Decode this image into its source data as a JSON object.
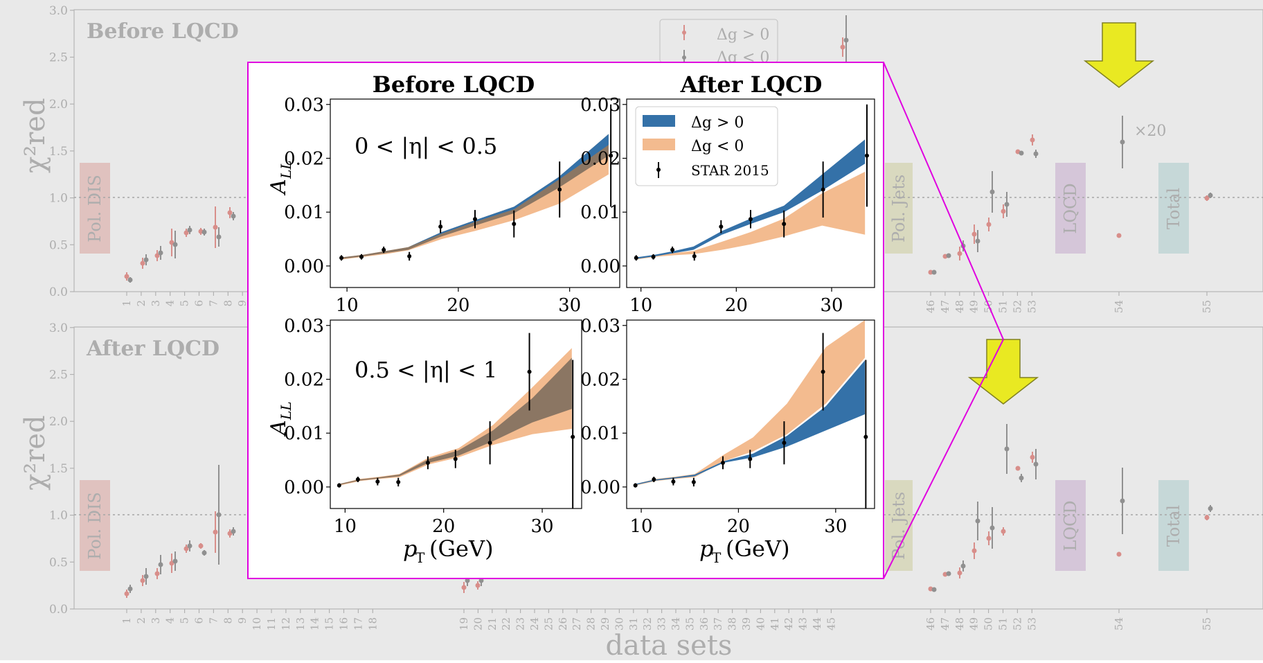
{
  "background": {
    "colors": {
      "dim": "#e9e9e9",
      "text": "#b3b3b3",
      "band_dis": "#f0b8b4",
      "band_jets": "#e3e2b2",
      "band_lqcd": "#dcbfe2",
      "band_total": "#bfe1df",
      "arrow": "#ffff00",
      "red": "#e98b86",
      "grey": "#8e8e8e"
    },
    "top_panel_title": "Before LQCD",
    "bottom_panel_title": "After LQCD",
    "ylabel": "χ²red",
    "xlabel": "data sets",
    "yticks": [
      "0.0",
      "0.5",
      "1.0",
      "1.5",
      "2.0",
      "2.5",
      "3.0"
    ],
    "legend": {
      "pos": "Δg > 0",
      "neg": "Δg < 0"
    },
    "bands": {
      "dis": "Pol. DIS",
      "jets": "Pol. Jets",
      "lqcd": "LQCD",
      "total": "Total"
    },
    "times20": "×20",
    "xticks_top": [
      "1",
      "2",
      "3",
      "4",
      "5",
      "6",
      "7",
      "8",
      "9",
      "46",
      "47",
      "48",
      "49",
      "50",
      "51",
      "52",
      "53",
      "54",
      "55"
    ],
    "xticks_bottom": [
      "1",
      "2",
      "3",
      "4",
      "5",
      "6",
      "7",
      "8",
      "9",
      "10",
      "11",
      "12",
      "13",
      "14",
      "15",
      "16",
      "17",
      "18",
      "19",
      "20",
      "21",
      "22",
      "23",
      "24",
      "25",
      "26",
      "27",
      "28",
      "29",
      "30",
      "31",
      "32",
      "33",
      "34",
      "35",
      "36",
      "37",
      "38",
      "39",
      "40",
      "41",
      "42",
      "43",
      "44",
      "45",
      "46",
      "47",
      "48",
      "49",
      "50",
      "51",
      "52",
      "53",
      "54",
      "55"
    ]
  },
  "inset": {
    "col_titles": [
      "Before LQCD",
      "After LQCD"
    ],
    "eta_labels": [
      "0 < |η| < 0.5",
      "0.5 < |η| < 1"
    ],
    "ylabel": "A",
    "ylabel_sub": "LL",
    "xlabel": "p",
    "xlabel_sub": "T",
    "xlabel_unit": "(GeV)",
    "legend": {
      "pos": "Δg > 0",
      "neg": "Δg < 0",
      "star": "STAR 2015"
    },
    "colors": {
      "pos": "#3471a8",
      "neg": "#f3bb8f",
      "overlap": "#8b7663",
      "border": "#e000e0"
    }
  },
  "chart_data": [
    {
      "type": "line",
      "title": "Before LQCD",
      "panel": "0 < |η| < 0.5",
      "xlabel": "pT (GeV)",
      "ylabel": "ALL",
      "xlim": [
        8.5,
        34.5
      ],
      "ylim": [
        -0.004,
        0.031
      ],
      "xticks": [
        10,
        20,
        30
      ],
      "yticks": [
        "0.00",
        "0.01",
        "0.02",
        "0.03"
      ],
      "series": [
        {
          "name": "Δg > 0",
          "x": [
            9.5,
            11.5,
            13.5,
            15.5,
            18.5,
            21.5,
            25,
            29,
            33.5
          ],
          "low": [
            0.0013,
            0.0018,
            0.0024,
            0.003,
            0.0055,
            0.0075,
            0.0098,
            0.0145,
            0.0205
          ],
          "high": [
            0.0016,
            0.0021,
            0.0028,
            0.0035,
            0.0063,
            0.0085,
            0.011,
            0.0165,
            0.0245
          ]
        },
        {
          "name": "Δg < 0",
          "x": [
            9.5,
            11.5,
            13.5,
            15.5,
            18.5,
            21.5,
            25,
            29,
            33.5
          ],
          "low": [
            0.0012,
            0.0017,
            0.0022,
            0.0029,
            0.005,
            0.0065,
            0.0085,
            0.0115,
            0.017
          ],
          "high": [
            0.0016,
            0.0021,
            0.0028,
            0.0035,
            0.006,
            0.0082,
            0.0105,
            0.016,
            0.0225
          ]
        },
        {
          "name": "STAR 2015",
          "x": [
            9.5,
            11.3,
            13.3,
            15.6,
            18.4,
            21.5,
            25,
            29.1,
            33.7
          ],
          "y": [
            0.0015,
            0.0017,
            0.003,
            0.0018,
            0.0073,
            0.0087,
            0.0078,
            0.0142,
            0.0205
          ],
          "err": [
            0.0005,
            0.0005,
            0.0006,
            0.0008,
            0.0012,
            0.0017,
            0.0025,
            0.0052,
            0.0095
          ]
        }
      ]
    },
    {
      "type": "line",
      "title": "After LQCD",
      "panel": "0 < |η| < 0.5",
      "xlabel": "pT (GeV)",
      "ylabel": "ALL",
      "xlim": [
        8.5,
        34.5
      ],
      "ylim": [
        -0.004,
        0.031
      ],
      "xticks": [
        10,
        20,
        30
      ],
      "yticks": [
        "0.00",
        "0.01",
        "0.02",
        "0.03"
      ],
      "series": [
        {
          "name": "Δg > 0",
          "x": [
            9.5,
            11.5,
            13.5,
            15.5,
            18.5,
            21.5,
            25,
            29,
            33.5
          ],
          "low": [
            0.0013,
            0.0018,
            0.0024,
            0.003,
            0.0058,
            0.0078,
            0.01,
            0.014,
            0.019
          ],
          "high": [
            0.0016,
            0.0021,
            0.0028,
            0.0036,
            0.0065,
            0.0088,
            0.0112,
            0.017,
            0.0235
          ]
        },
        {
          "name": "Δg < 0",
          "x": [
            9.5,
            11.5,
            13.5,
            15.5,
            18.5,
            21.5,
            25,
            29,
            33.5
          ],
          "low": [
            0.0012,
            0.0017,
            0.002,
            0.0022,
            0.003,
            0.004,
            0.0055,
            0.0075,
            0.0058
          ],
          "high": [
            0.0014,
            0.0019,
            0.0024,
            0.0028,
            0.0045,
            0.0063,
            0.0088,
            0.0135,
            0.0175
          ]
        },
        {
          "name": "STAR 2015",
          "x": [
            9.5,
            11.3,
            13.3,
            15.6,
            18.4,
            21.5,
            25,
            29.1,
            33.7
          ],
          "y": [
            0.0015,
            0.0017,
            0.003,
            0.0018,
            0.0073,
            0.0087,
            0.0078,
            0.0142,
            0.0205
          ],
          "err": [
            0.0005,
            0.0005,
            0.0006,
            0.0008,
            0.0012,
            0.0017,
            0.0025,
            0.0052,
            0.0095
          ]
        }
      ]
    },
    {
      "type": "line",
      "title": "Before LQCD",
      "panel": "0.5 < |η| < 1",
      "xlabel": "pT (GeV)",
      "ylabel": "ALL",
      "xlim": [
        8.5,
        34
      ],
      "ylim": [
        -0.004,
        0.031
      ],
      "xticks": [
        10,
        20,
        30
      ],
      "yticks": [
        "0.00",
        "0.01",
        "0.02",
        "0.03"
      ],
      "series": [
        {
          "name": "Δg > 0",
          "x": [
            9.5,
            11.5,
            13.5,
            15.5,
            18.5,
            21.5,
            25,
            29,
            33
          ],
          "low": [
            0.0004,
            0.0012,
            0.0016,
            0.002,
            0.0045,
            0.0058,
            0.0085,
            0.012,
            0.0145
          ],
          "high": [
            0.0006,
            0.0014,
            0.0018,
            0.0023,
            0.0052,
            0.0068,
            0.0105,
            0.0165,
            0.024
          ]
        },
        {
          "name": "Δg < 0",
          "x": [
            9.5,
            11.5,
            13.5,
            15.5,
            18.5,
            21.5,
            25,
            29,
            33
          ],
          "low": [
            0.0003,
            0.0011,
            0.0015,
            0.0018,
            0.0042,
            0.0055,
            0.0078,
            0.0098,
            0.0108
          ],
          "high": [
            0.0006,
            0.0015,
            0.0019,
            0.0024,
            0.0055,
            0.0072,
            0.0115,
            0.0185,
            0.0258
          ]
        },
        {
          "name": "STAR 2015",
          "x": [
            9.4,
            11.3,
            13.3,
            15.4,
            18.4,
            21.2,
            24.7,
            28.7,
            33.1
          ],
          "y": [
            0.0003,
            0.0014,
            0.001,
            0.0009,
            0.0045,
            0.0052,
            0.0082,
            0.0214,
            0.0093
          ],
          "err": [
            0.0004,
            0.0005,
            0.0007,
            0.0008,
            0.0012,
            0.0017,
            0.004,
            0.0072,
            0.0143
          ]
        }
      ]
    },
    {
      "type": "line",
      "title": "After LQCD",
      "panel": "0.5 < |η| < 1",
      "xlabel": "pT (GeV)",
      "ylabel": "ALL",
      "xlim": [
        8.5,
        34
      ],
      "ylim": [
        -0.004,
        0.031
      ],
      "xticks": [
        10,
        20,
        30
      ],
      "yticks": [
        "0.00",
        "0.01",
        "0.02",
        "0.03"
      ],
      "series": [
        {
          "name": "Δg > 0",
          "x": [
            9.5,
            11.5,
            13.5,
            15.5,
            18.5,
            21.5,
            25,
            29,
            33
          ],
          "low": [
            0.0004,
            0.0012,
            0.0016,
            0.002,
            0.0045,
            0.0055,
            0.0075,
            0.0105,
            0.0135
          ],
          "high": [
            0.0006,
            0.0014,
            0.0018,
            0.0023,
            0.0048,
            0.0062,
            0.0095,
            0.015,
            0.0235
          ]
        },
        {
          "name": "Δg < 0",
          "x": [
            9.5,
            11.5,
            13.5,
            15.5,
            18.5,
            21.5,
            25,
            29,
            33
          ],
          "low": [
            0.0003,
            0.0011,
            0.0015,
            0.0018,
            0.0048,
            0.0066,
            0.0098,
            0.0155,
            0.024
          ],
          "high": [
            0.0006,
            0.0015,
            0.0019,
            0.0024,
            0.006,
            0.0092,
            0.0155,
            0.026,
            0.031
          ]
        },
        {
          "name": "STAR 2015",
          "x": [
            9.4,
            11.3,
            13.3,
            15.4,
            18.4,
            21.2,
            24.7,
            28.7,
            33.1
          ],
          "y": [
            0.0003,
            0.0014,
            0.001,
            0.0009,
            0.0045,
            0.0052,
            0.0082,
            0.0214,
            0.0093
          ],
          "err": [
            0.0004,
            0.0005,
            0.0007,
            0.0008,
            0.0012,
            0.0017,
            0.004,
            0.0072,
            0.0143
          ]
        }
      ]
    }
  ]
}
